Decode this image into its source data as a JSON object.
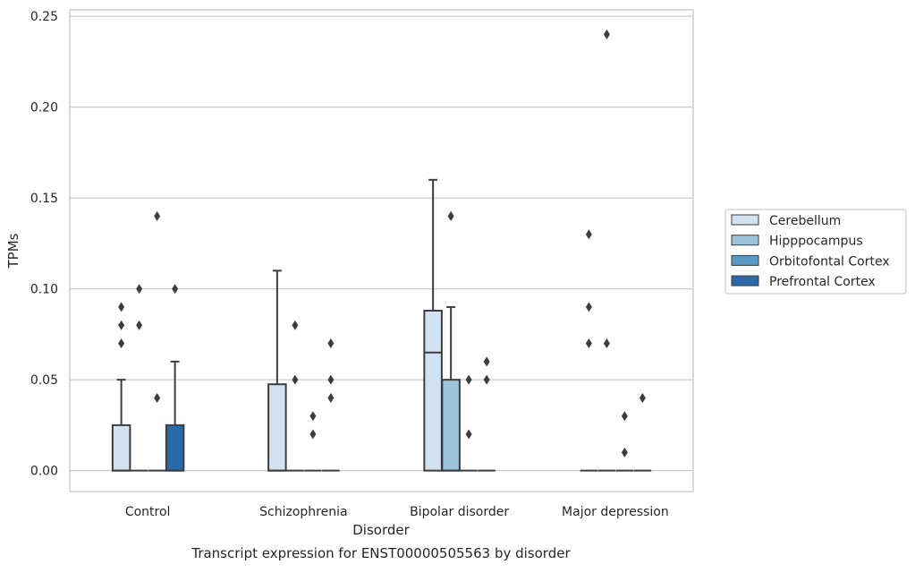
{
  "chart_data": {
    "type": "box",
    "title": "Transcript expression for ENST00000505563 by disorder",
    "xlabel": "Disorder",
    "ylabel": "TPMs",
    "ylim": [
      -0.0115,
      0.2535
    ],
    "yticks": [
      0.0,
      0.05,
      0.1,
      0.15,
      0.2,
      0.25
    ],
    "ytick_labels": [
      "0.00",
      "0.05",
      "0.10",
      "0.15",
      "0.20",
      "0.25"
    ],
    "grid": "horizontal",
    "legend_position": "right-outside",
    "categories": [
      "Control",
      "Schizophrenia",
      "Bipolar disorder",
      "Major depression"
    ],
    "series": [
      {
        "name": "Cerebellum",
        "color": "#d3e2f1",
        "boxes": [
          {
            "q1": 0,
            "median": 0,
            "q3": 0.025,
            "whislo": 0,
            "whishi": 0.05,
            "fliers": [
              0.07,
              0.08,
              0.09
            ]
          },
          {
            "q1": 0,
            "median": 0,
            "q3": 0.0475,
            "whislo": 0,
            "whishi": 0.11,
            "fliers": []
          },
          {
            "q1": 0,
            "median": 0.065,
            "q3": 0.088,
            "whislo": 0,
            "whishi": 0.16,
            "fliers": []
          },
          {
            "q1": 0,
            "median": 0,
            "q3": 0,
            "whislo": 0,
            "whishi": 0,
            "fliers": [
              0.07,
              0.09,
              0.13
            ]
          }
        ]
      },
      {
        "name": "Hipppocampus",
        "color": "#9cc4dc",
        "boxes": [
          {
            "q1": 0,
            "median": 0,
            "q3": 0,
            "whislo": 0,
            "whishi": 0,
            "fliers": [
              0.08,
              0.1
            ]
          },
          {
            "q1": 0,
            "median": 0,
            "q3": 0,
            "whislo": 0,
            "whishi": 0,
            "fliers": [
              0.05,
              0.08
            ]
          },
          {
            "q1": 0,
            "median": 0,
            "q3": 0.05,
            "whislo": 0,
            "whishi": 0.09,
            "fliers": [
              0.14
            ]
          },
          {
            "q1": 0,
            "median": 0,
            "q3": 0,
            "whislo": 0,
            "whishi": 0,
            "fliers": [
              0.07,
              0.24
            ]
          }
        ]
      },
      {
        "name": "Orbitofontal Cortex",
        "color": "#5b9ac7",
        "boxes": [
          {
            "q1": 0,
            "median": 0,
            "q3": 0,
            "whislo": 0,
            "whishi": 0,
            "fliers": [
              0.04,
              0.14
            ]
          },
          {
            "q1": 0,
            "median": 0,
            "q3": 0,
            "whislo": 0,
            "whishi": 0,
            "fliers": [
              0.02,
              0.03
            ]
          },
          {
            "q1": 0,
            "median": 0,
            "q3": 0,
            "whislo": 0,
            "whishi": 0,
            "fliers": [
              0.02,
              0.05
            ]
          },
          {
            "q1": 0,
            "median": 0,
            "q3": 0,
            "whislo": 0,
            "whishi": 0,
            "fliers": [
              0.01,
              0.03
            ]
          }
        ]
      },
      {
        "name": "Prefrontal Cortex",
        "color": "#2b6aa8",
        "boxes": [
          {
            "q1": 0,
            "median": 0,
            "q3": 0.025,
            "whislo": 0,
            "whishi": 0.06,
            "fliers": [
              0.1
            ]
          },
          {
            "q1": 0,
            "median": 0,
            "q3": 0,
            "whislo": 0,
            "whishi": 0,
            "fliers": [
              0.04,
              0.05,
              0.07
            ]
          },
          {
            "q1": 0,
            "median": 0,
            "q3": 0,
            "whislo": 0,
            "whishi": 0,
            "fliers": [
              0.05,
              0.06
            ]
          },
          {
            "q1": 0,
            "median": 0,
            "q3": 0,
            "whislo": 0,
            "whishi": 0,
            "fliers": [
              0.04
            ]
          }
        ]
      }
    ]
  }
}
